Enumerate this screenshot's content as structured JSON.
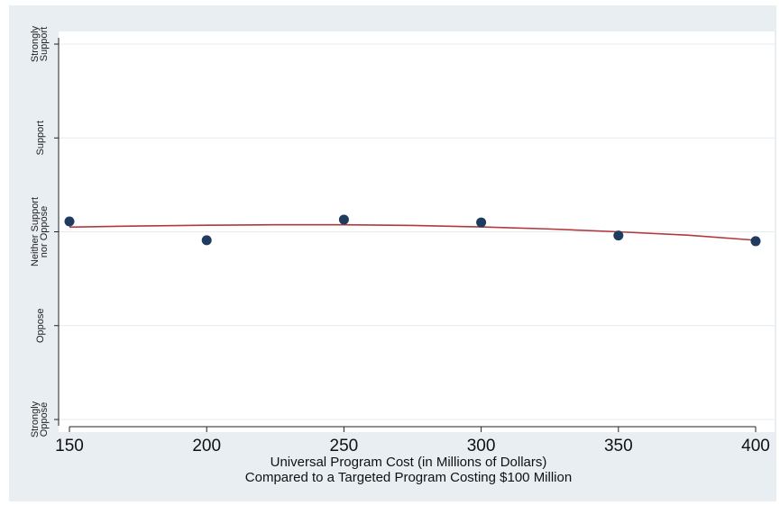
{
  "chart_data": {
    "type": "scatter",
    "title": "",
    "xlabel_lines": [
      "Universal Program Cost (in Millions of Dollars)",
      "Compared to a Targeted Program Costing $100 Million"
    ],
    "ylabel": "",
    "x_ticks": [
      "150",
      "200",
      "250",
      "300",
      "350",
      "400"
    ],
    "y_ticks": [
      {
        "value": 1,
        "lines": [
          "Strongly",
          "Oppose"
        ]
      },
      {
        "value": 2,
        "lines": [
          "Oppose"
        ]
      },
      {
        "value": 3,
        "lines": [
          "Neither Support",
          "nor Oppose"
        ]
      },
      {
        "value": 4,
        "lines": [
          "Support"
        ]
      },
      {
        "value": 5,
        "lines": [
          "Strongly",
          "Support"
        ]
      }
    ],
    "xlim": [
      150,
      400
    ],
    "ylim": [
      1,
      5
    ],
    "grid": true,
    "series": [
      {
        "kind": "points",
        "color": "#1f3b5e",
        "x": [
          150,
          200,
          250,
          300,
          350,
          400
        ],
        "y": [
          3.11,
          2.91,
          3.13,
          3.1,
          2.96,
          2.9
        ]
      },
      {
        "kind": "fit_line",
        "color": "#b5373d",
        "x": [
          150,
          175,
          200,
          225,
          250,
          275,
          300,
          325,
          350,
          375,
          400
        ],
        "y": [
          3.05,
          3.062,
          3.07,
          3.075,
          3.075,
          3.068,
          3.052,
          3.03,
          3.0,
          2.965,
          2.91
        ]
      }
    ]
  },
  "colors": {
    "figure_background": "#e8eef2",
    "plot_background": "#ffffff",
    "grid": "#e6ecf0",
    "axis": "#222222"
  }
}
